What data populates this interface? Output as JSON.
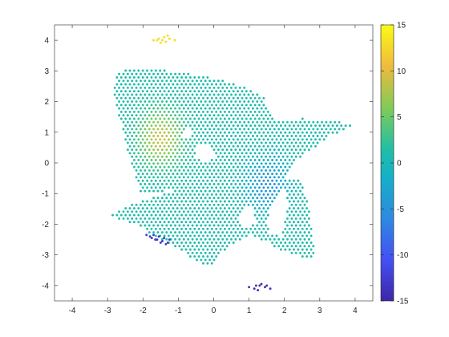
{
  "chart_data": {
    "type": "scatter",
    "title": "",
    "xlabel": "",
    "ylabel": "",
    "xlim": [
      -4.5,
      4.5
    ],
    "ylim": [
      -4.5,
      4.5
    ],
    "xticks": [
      -4,
      -3,
      -2,
      -1,
      0,
      1,
      2,
      3,
      4
    ],
    "yticks": [
      -4,
      -3,
      -2,
      -1,
      0,
      1,
      2,
      3,
      4
    ],
    "grid": false,
    "colormap": "parula",
    "colorbar": {
      "limits": [
        -15,
        15
      ],
      "ticks": [
        -15,
        -10,
        -5,
        0,
        5,
        10,
        15
      ]
    },
    "point_color_value_background": 1,
    "point_clusters": [
      {
        "region": "top",
        "value": 13,
        "points": [
          [
            -1.7,
            4.0
          ],
          [
            -1.55,
            4.05
          ],
          [
            -1.4,
            4.1
          ],
          [
            -1.25,
            4.05
          ],
          [
            -1.1,
            4.0
          ],
          [
            -1.35,
            3.95
          ],
          [
            -1.5,
            3.92
          ],
          [
            -1.6,
            4.0
          ],
          [
            -1.3,
            4.15
          ],
          [
            -1.45,
            4.0
          ]
        ]
      },
      {
        "region": "bottom",
        "value": -14,
        "points": [
          [
            1.0,
            -4.05
          ],
          [
            1.15,
            -4.1
          ],
          [
            1.3,
            -4.0
          ],
          [
            1.45,
            -4.05
          ],
          [
            1.6,
            -4.1
          ],
          [
            1.25,
            -4.15
          ],
          [
            1.35,
            -3.95
          ],
          [
            1.2,
            -4.0
          ],
          [
            1.5,
            -4.0
          ]
        ]
      },
      {
        "region": "lower-left",
        "value": -13,
        "points": [
          [
            -1.9,
            -2.35
          ],
          [
            -1.75,
            -2.45
          ],
          [
            -1.6,
            -2.5
          ],
          [
            -1.45,
            -2.55
          ],
          [
            -1.3,
            -2.6
          ],
          [
            -1.8,
            -2.4
          ],
          [
            -1.65,
            -2.5
          ],
          [
            -1.5,
            -2.6
          ],
          [
            -1.35,
            -2.65
          ],
          [
            -1.25,
            -2.5
          ],
          [
            -1.4,
            -2.45
          ],
          [
            -1.55,
            -2.4
          ],
          [
            -1.7,
            -2.35
          ]
        ]
      }
    ],
    "hotspots": [
      {
        "center": [
          -1.5,
          0.8
        ],
        "value": 9
      },
      {
        "center": [
          1.5,
          -0.7
        ],
        "value": -5
      }
    ]
  }
}
